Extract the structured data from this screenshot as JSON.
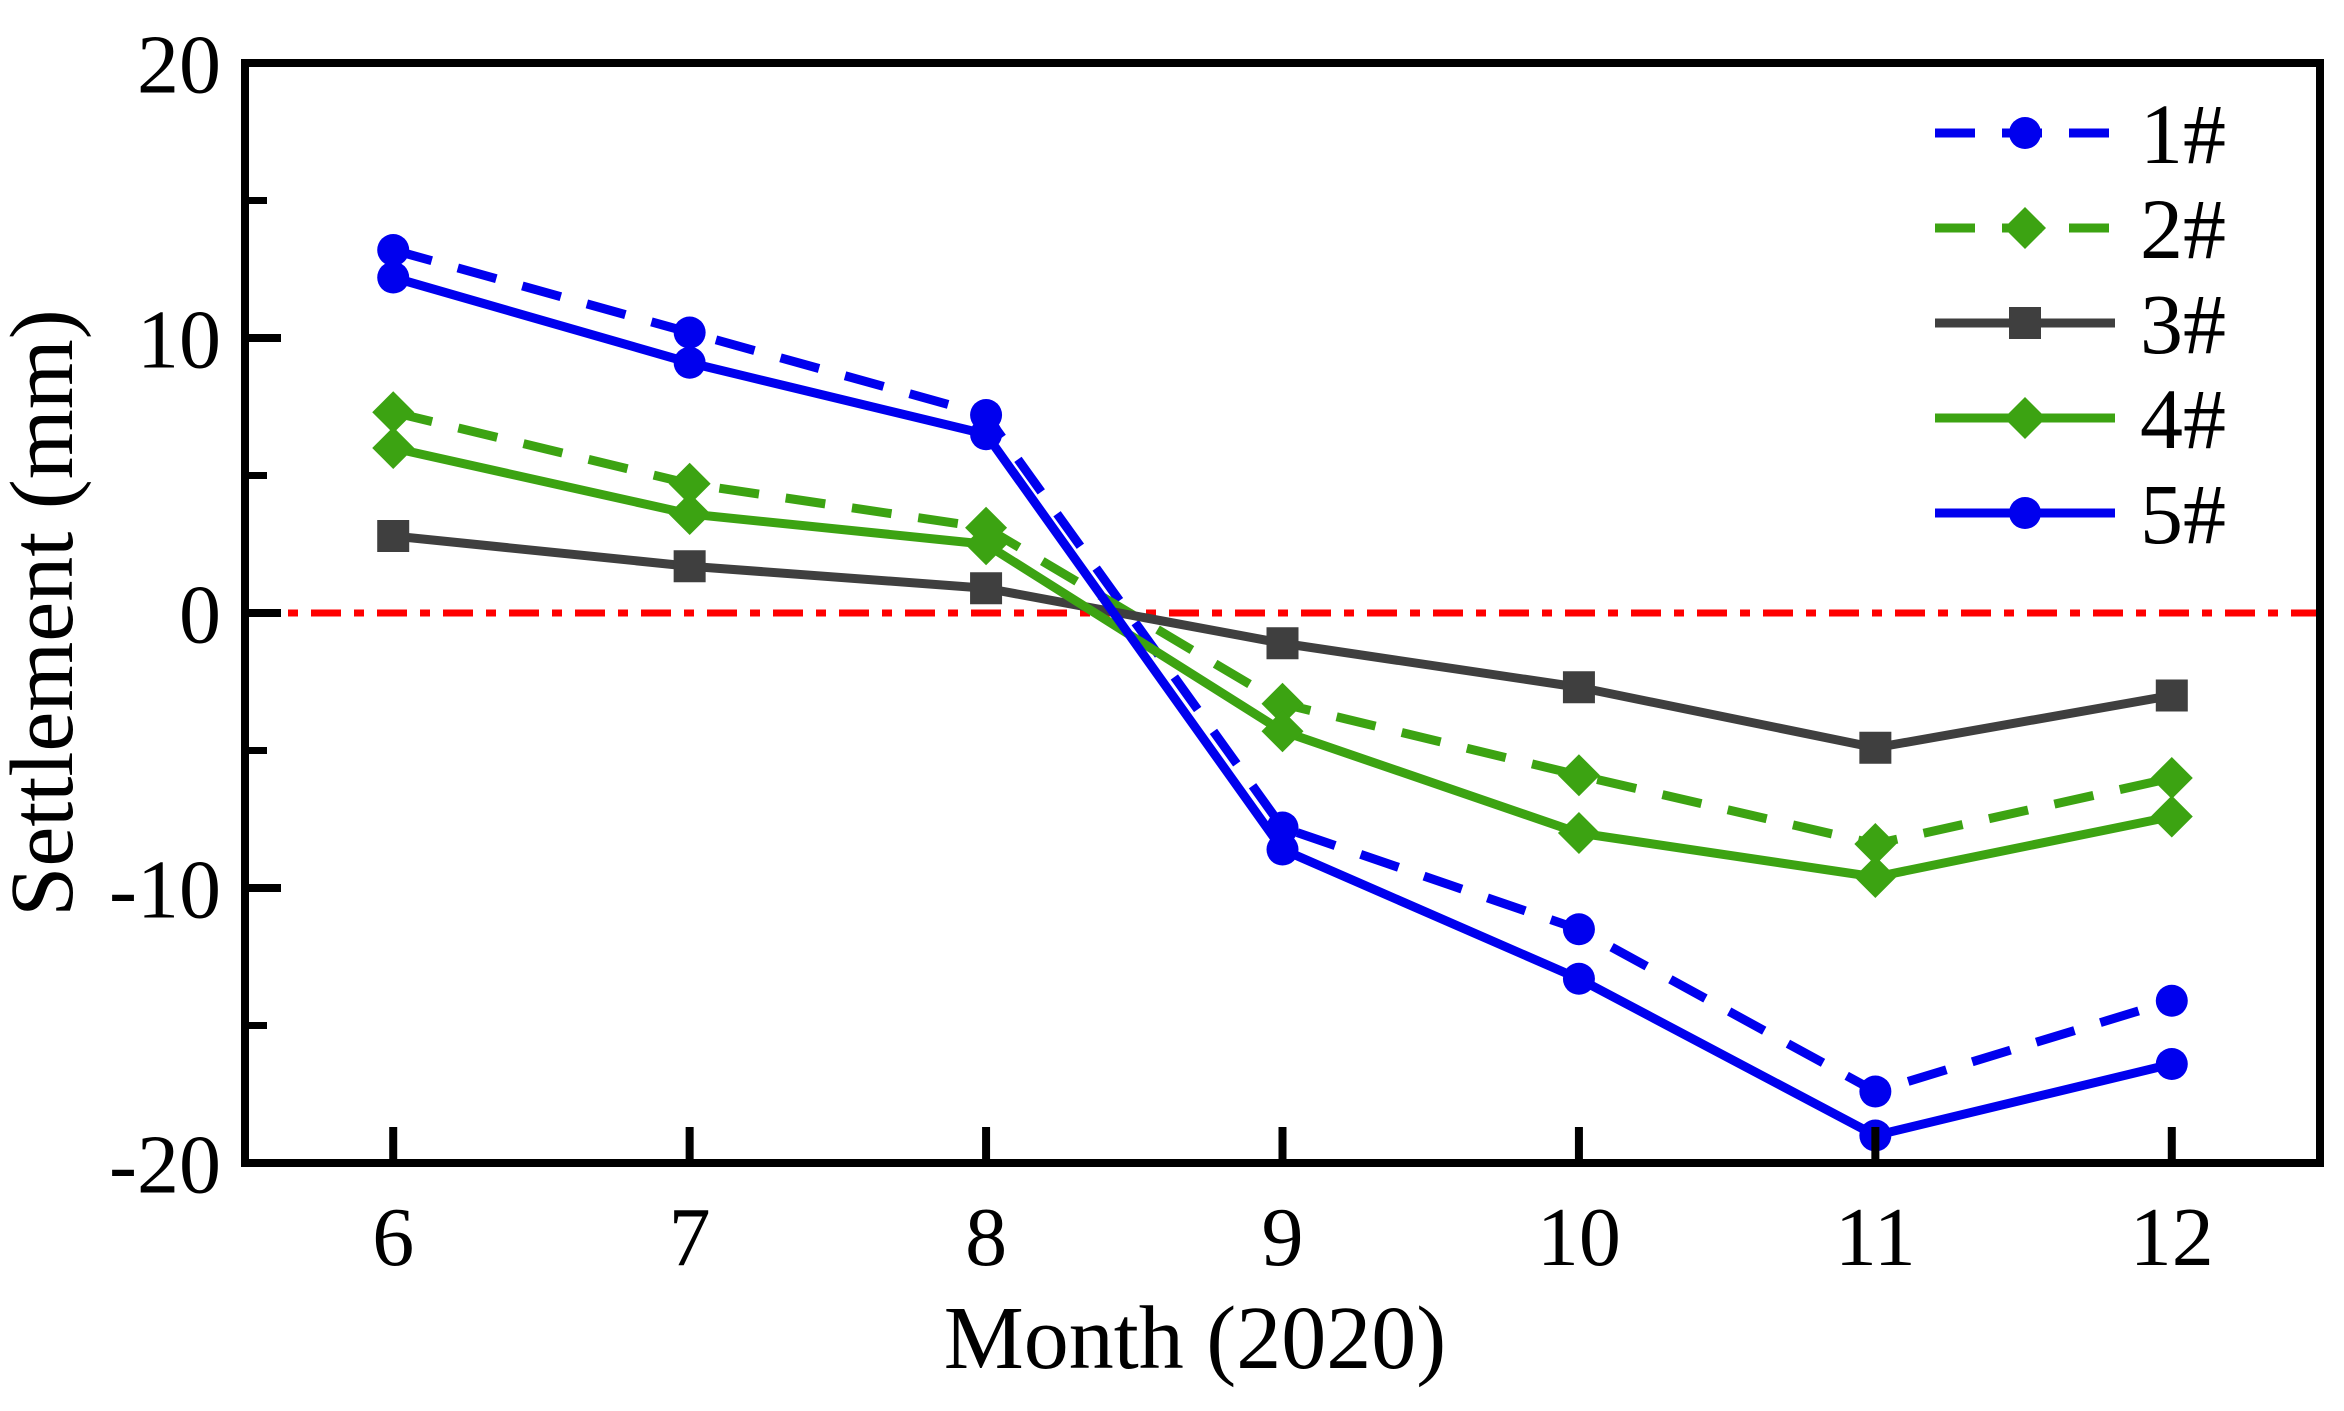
{
  "chart_data": {
    "type": "line",
    "title": "",
    "xlabel": "Month (2020)",
    "ylabel": "Settlement (mm)",
    "x": [
      6,
      7,
      8,
      9,
      10,
      11,
      12
    ],
    "x_tick_labels": [
      "6",
      "7",
      "8",
      "9",
      "10",
      "11",
      "12"
    ],
    "xlim": [
      5.5,
      12.5
    ],
    "ylim": [
      -20,
      20
    ],
    "y_major_ticks": [
      20,
      10,
      0,
      -10,
      -20
    ],
    "y_minor_ticks": [
      15,
      5,
      -5,
      -15
    ],
    "grid": false,
    "legend_position": "top-right-inside",
    "frame_color": "#000000",
    "reference_line": {
      "y": 0,
      "color": "#FF0000",
      "style": "dash-dot"
    },
    "series": [
      {
        "name": "1#",
        "color": "#0000EE",
        "line_style": "dashed",
        "marker": "circle",
        "values": [
          13.2,
          10.2,
          7.2,
          -7.8,
          -11.5,
          -17.4,
          -14.1
        ]
      },
      {
        "name": "2#",
        "color": "#3CA312",
        "line_style": "dashed",
        "marker": "diamond",
        "values": [
          7.3,
          4.7,
          3.1,
          -3.3,
          -5.9,
          -8.4,
          -6.0
        ]
      },
      {
        "name": "3#",
        "color": "#3F3F3F",
        "line_style": "solid",
        "marker": "square",
        "values": [
          2.8,
          1.7,
          0.9,
          -1.1,
          -2.7,
          -4.9,
          -3.0
        ]
      },
      {
        "name": "4#",
        "color": "#3CA312",
        "line_style": "solid",
        "marker": "diamond",
        "values": [
          6.0,
          3.6,
          2.5,
          -4.3,
          -8.0,
          -9.6,
          -7.4
        ]
      },
      {
        "name": "5#",
        "color": "#0000EE",
        "line_style": "solid",
        "marker": "circle",
        "values": [
          12.2,
          9.1,
          6.5,
          -8.6,
          -13.3,
          -19.0,
          -16.4
        ]
      }
    ]
  }
}
